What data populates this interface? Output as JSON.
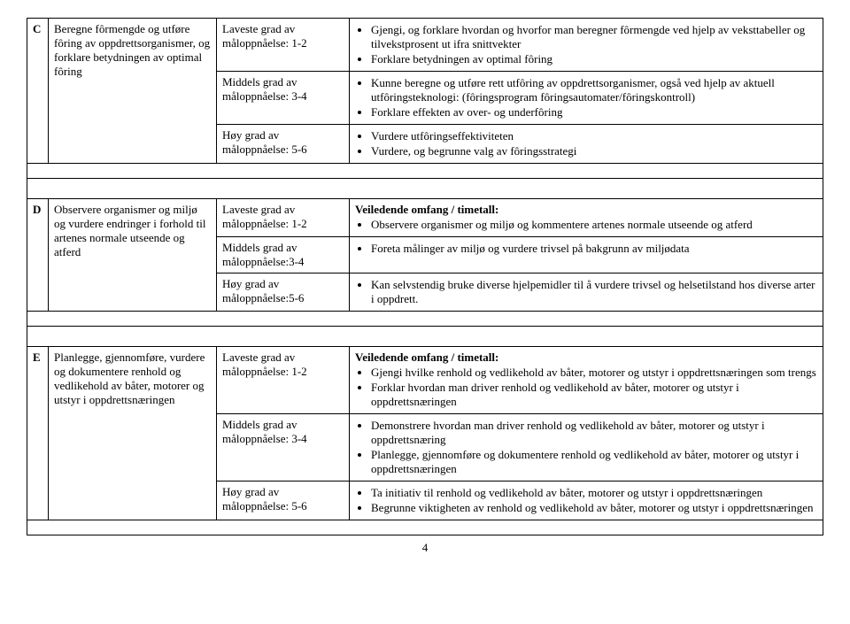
{
  "page_number": "4",
  "guidance_heading": "Veiledende omfang / timetall:",
  "sections": [
    {
      "letter": "C",
      "description": "Beregne fôrmengde og utføre fôring av oppdrettsorganismer, og forklare betydningen av optimal fôring",
      "rows": [
        {
          "level_label": "Laveste grad av",
          "level_value": "måloppnåelse: 1-2",
          "bullets": [
            "Gjengi, og forklare hvordan og hvorfor man beregner fôrmengde ved hjelp av veksttabeller og  tilvekstprosent ut ifra snittvekter",
            "Forklare betydningen av optimal fôring"
          ]
        },
        {
          "level_label": "Middels grad av",
          "level_value": "måloppnåelse: 3-4",
          "bullets": [
            "Kunne beregne og utføre rett utfôring av oppdrettsorganismer, også ved hjelp av aktuell utfôringsteknologi: (fôringsprogram fôringsautomater/fôringskontroll)",
            "Forklare effekten av over- og underfôring"
          ]
        },
        {
          "level_label": "Høy grad av",
          "level_value": "måloppnåelse: 5-6",
          "bullets": [
            "Vurdere utfôringseffektiviteten",
            "Vurdere, og begrunne valg av fôringsstrategi"
          ]
        }
      ]
    },
    {
      "letter": "D",
      "description": "Observere organismer og miljø og vurdere endringer i forhold til artenes normale utseende og atferd",
      "rows": [
        {
          "level_label": "Laveste grad av",
          "level_value": "måloppnåelse: 1-2",
          "bullets": [
            "Observere organismer og miljø og kommentere artenes normale utseende og atferd"
          ]
        },
        {
          "level_label": "Middels grad av",
          "level_value": "måloppnåelse:3-4",
          "bullets": [
            "Foreta målinger av miljø og vurdere trivsel på bakgrunn av miljødata"
          ]
        },
        {
          "level_label": "Høy grad av",
          "level_value": "måloppnåelse:5-6",
          "bullets": [
            "Kan selvstendig bruke diverse hjelpemidler til å vurdere trivsel og helsetilstand hos diverse arter i oppdrett."
          ]
        }
      ]
    },
    {
      "letter": "E",
      "description": "Planlegge, gjennomføre, vurdere og dokumentere renhold og vedlikehold av båter, motorer og utstyr i oppdrettsnæringen",
      "rows": [
        {
          "level_label": "Laveste grad av",
          "level_value": "måloppnåelse: 1-2",
          "bullets": [
            "Gjengi hvilke renhold og vedlikehold av båter, motorer og utstyr i oppdrettsnæringen som trengs",
            "Forklar hvordan man driver renhold og vedlikehold av båter, motorer og utstyr i oppdrettsnæringen"
          ]
        },
        {
          "level_label": "Middels grad av",
          "level_value": "måloppnåelse: 3-4",
          "bullets": [
            "Demonstrere hvordan man driver renhold og vedlikehold av båter, motorer og utstyr i oppdrettsnæring",
            "Planlegge, gjennomføre og dokumentere renhold og vedlikehold av båter, motorer og utstyr i oppdrettsnæringen"
          ]
        },
        {
          "level_label": "Høy grad av",
          "level_value": "måloppnåelse: 5-6",
          "bullets": [
            "Ta initiativ til renhold og vedlikehold av båter, motorer og utstyr i oppdrettsnæringen",
            "Begrunne viktigheten av renhold og vedlikehold av båter, motorer og utstyr i oppdrettsnæringen"
          ]
        }
      ]
    }
  ]
}
